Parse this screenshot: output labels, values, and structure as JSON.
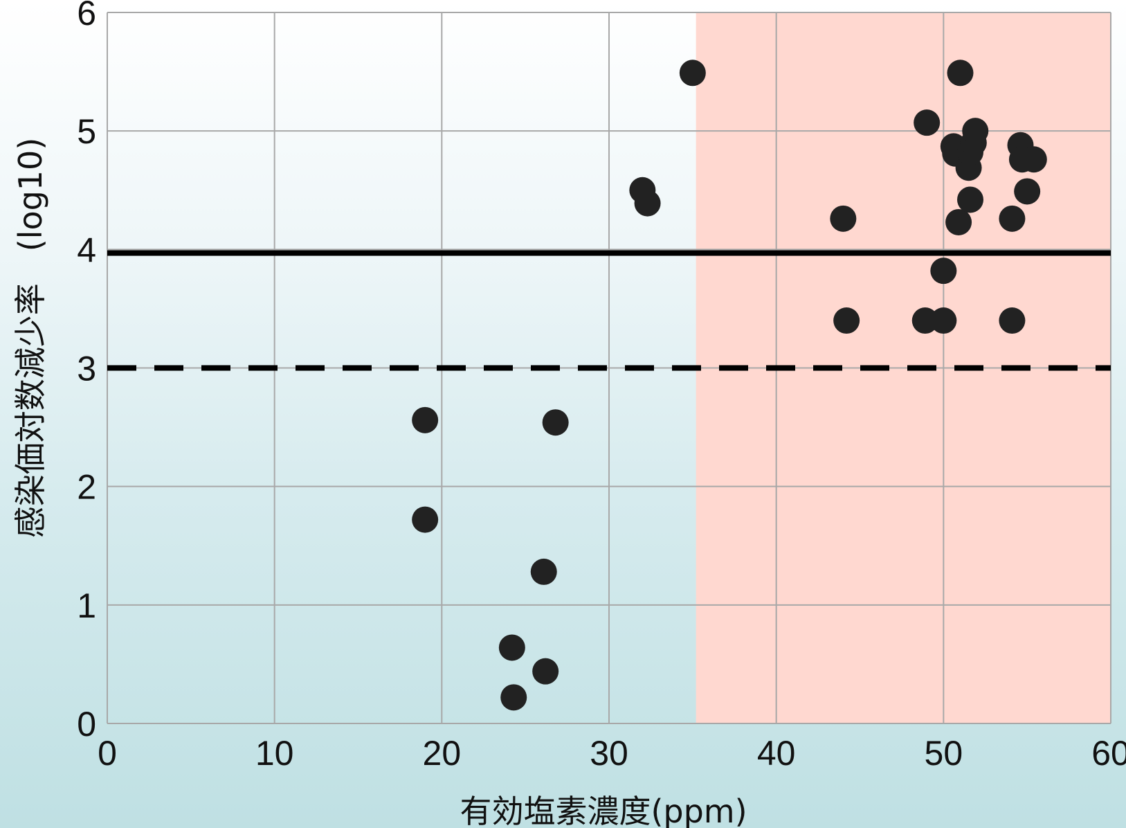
{
  "chart_data": {
    "type": "scatter",
    "title": "",
    "xlabel": "有効塩素濃度(ppm)",
    "ylabel": "感染価対数減少率　(log10)",
    "xlim": [
      0,
      60
    ],
    "ylim": [
      0,
      6
    ],
    "x_ticks": [
      "0",
      "10",
      "20",
      "30",
      "40",
      "50",
      "60"
    ],
    "y_ticks": [
      "0",
      "1",
      "2",
      "3",
      "4",
      "5",
      "6"
    ],
    "grid": true,
    "legend": "none",
    "shaded_region": {
      "x_from": 35.2,
      "x_to": 60,
      "color": "#ffd8d0"
    },
    "reference_lines": [
      {
        "y": 3.97,
        "style": "solid",
        "color": "#000000"
      },
      {
        "y": 3.0,
        "style": "dashed",
        "color": "#000000"
      }
    ],
    "colors": {
      "point": "#222222",
      "grid": "#a8a8a8"
    },
    "series": [
      {
        "points": [
          [
            19.0,
            2.56
          ],
          [
            26.8,
            2.54
          ],
          [
            19.0,
            1.72
          ],
          [
            26.1,
            1.28
          ],
          [
            24.2,
            0.64
          ],
          [
            26.2,
            0.44
          ],
          [
            24.3,
            0.22
          ],
          [
            32.0,
            4.5
          ],
          [
            32.3,
            4.39
          ],
          [
            35.0,
            5.49
          ],
          [
            44.0,
            4.26
          ],
          [
            44.2,
            3.4
          ],
          [
            49.0,
            5.07
          ],
          [
            48.9,
            3.4
          ],
          [
            50.0,
            3.4
          ],
          [
            50.0,
            3.82
          ],
          [
            50.6,
            4.87
          ],
          [
            50.7,
            4.81
          ],
          [
            51.0,
            5.49
          ],
          [
            50.9,
            4.23
          ],
          [
            51.5,
            4.69
          ],
          [
            51.6,
            4.42
          ],
          [
            51.6,
            4.82
          ],
          [
            51.8,
            4.9
          ],
          [
            51.9,
            5.0
          ],
          [
            54.1,
            4.26
          ],
          [
            54.1,
            3.4
          ],
          [
            54.6,
            4.88
          ],
          [
            54.7,
            4.76
          ],
          [
            55.4,
            4.76
          ],
          [
            55.0,
            4.49
          ]
        ]
      }
    ]
  }
}
